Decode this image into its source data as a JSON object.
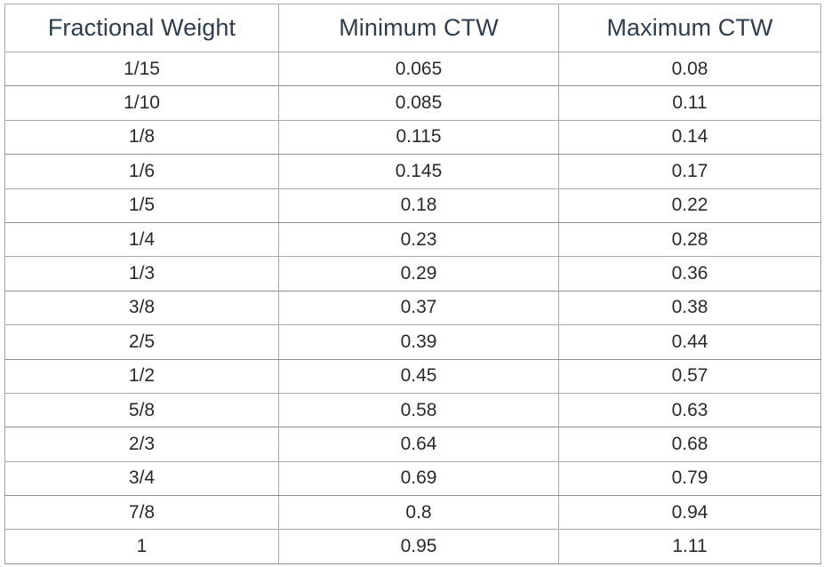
{
  "table": {
    "headers": [
      "Fractional Weight",
      "Minimum CTW",
      "Maximum CTW"
    ],
    "rows": [
      [
        "1/15",
        "0.065",
        "0.08"
      ],
      [
        "1/10",
        "0.085",
        "0.11"
      ],
      [
        "1/8",
        "0.115",
        "0.14"
      ],
      [
        "1/6",
        "0.145",
        "0.17"
      ],
      [
        "1/5",
        "0.18",
        "0.22"
      ],
      [
        "1/4",
        "0.23",
        "0.28"
      ],
      [
        "1/3",
        "0.29",
        "0.36"
      ],
      [
        "3/8",
        "0.37",
        "0.38"
      ],
      [
        "2/5",
        "0.39",
        "0.44"
      ],
      [
        "1/2",
        "0.45",
        "0.57"
      ],
      [
        "5/8",
        "0.58",
        "0.63"
      ],
      [
        "2/3",
        "0.64",
        "0.68"
      ],
      [
        "3/4",
        "0.69",
        "0.79"
      ],
      [
        "7/8",
        "0.8",
        "0.94"
      ],
      [
        "1",
        "0.95",
        "1.11"
      ]
    ]
  }
}
